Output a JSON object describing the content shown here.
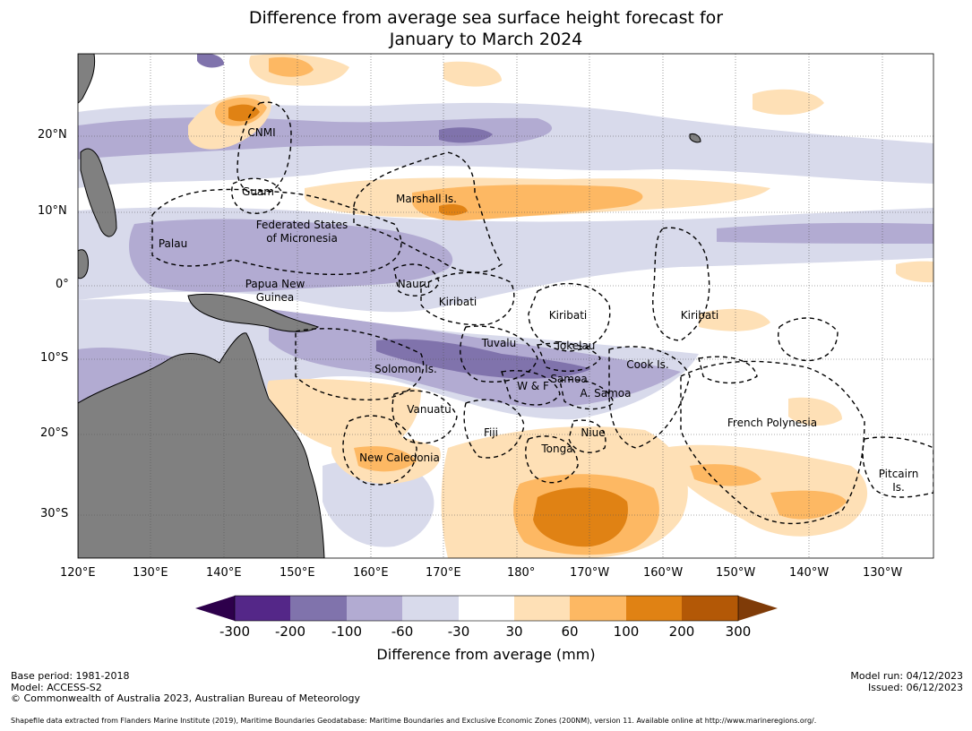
{
  "title_line1": "Difference from average sea surface height forecast for",
  "title_line2": "January to March 2024",
  "lat_labels": [
    "20°N",
    "10°N",
    "0°",
    "10°S",
    "20°S",
    "30°S"
  ],
  "lon_labels": [
    "120°E",
    "130°E",
    "140°E",
    "150°E",
    "160°E",
    "170°E",
    "180°",
    "170°W",
    "160°W",
    "150°W",
    "140°W",
    "130°W"
  ],
  "places": {
    "cnmi": "CNMI",
    "guam": "Guam",
    "marshall": "Marshall Is.",
    "fsm1": "Federated States",
    "fsm2": "of Micronesia",
    "palau": "Palau",
    "png1": "Papua New",
    "png2": "Guinea",
    "nauru": "Nauru",
    "kiribati_w": "Kiribati",
    "kiribati_c": "Kiribati",
    "kiribati_e": "Kiribati",
    "tuvalu": "Tuvalu",
    "tokelau": "Tokelau",
    "solomon": "Solomon Is.",
    "cook": "Cook Is.",
    "samoa": "Samoa",
    "wf": "W & F",
    "asamoa": "A. Samoa",
    "vanuatu": "Vanuatu",
    "fiji": "Fiji",
    "niue": "Niue",
    "tonga": "Tonga",
    "newcal": "New Caledonia",
    "frpoly": "French Polynesia",
    "pitcairn1": "Pitcairn",
    "pitcairn2": "Is."
  },
  "colorbar": {
    "ticks": [
      "-300",
      "-200",
      "-100",
      "-60",
      "-30",
      "30",
      "60",
      "100",
      "200",
      "300"
    ],
    "label": "Difference from average (mm)",
    "colors": [
      "#2d004b",
      "#542788",
      "#8073ac",
      "#b2abd2",
      "#d8daeb",
      "#ffffff",
      "#fee0b6",
      "#fdb863",
      "#e08214",
      "#b35806",
      "#7f3b08"
    ]
  },
  "footer": {
    "base_period": "Base period: 1981-2018",
    "model": "Model: ACCESS-S2",
    "copyright": "© Commonwealth of Australia 2023, Australian Bureau of Meteorology",
    "model_run": "Model run: 04/12/2023",
    "issued": "Issued: 06/12/2023",
    "shapefile": "Shapefile data extracted from Flanders Marine Institute (2019), Maritime Boundaries Geodatabase: Maritime Boundaries and Exclusive Economic Zones (200NM), version 11. Available online at http://www.marineregions.org/."
  }
}
